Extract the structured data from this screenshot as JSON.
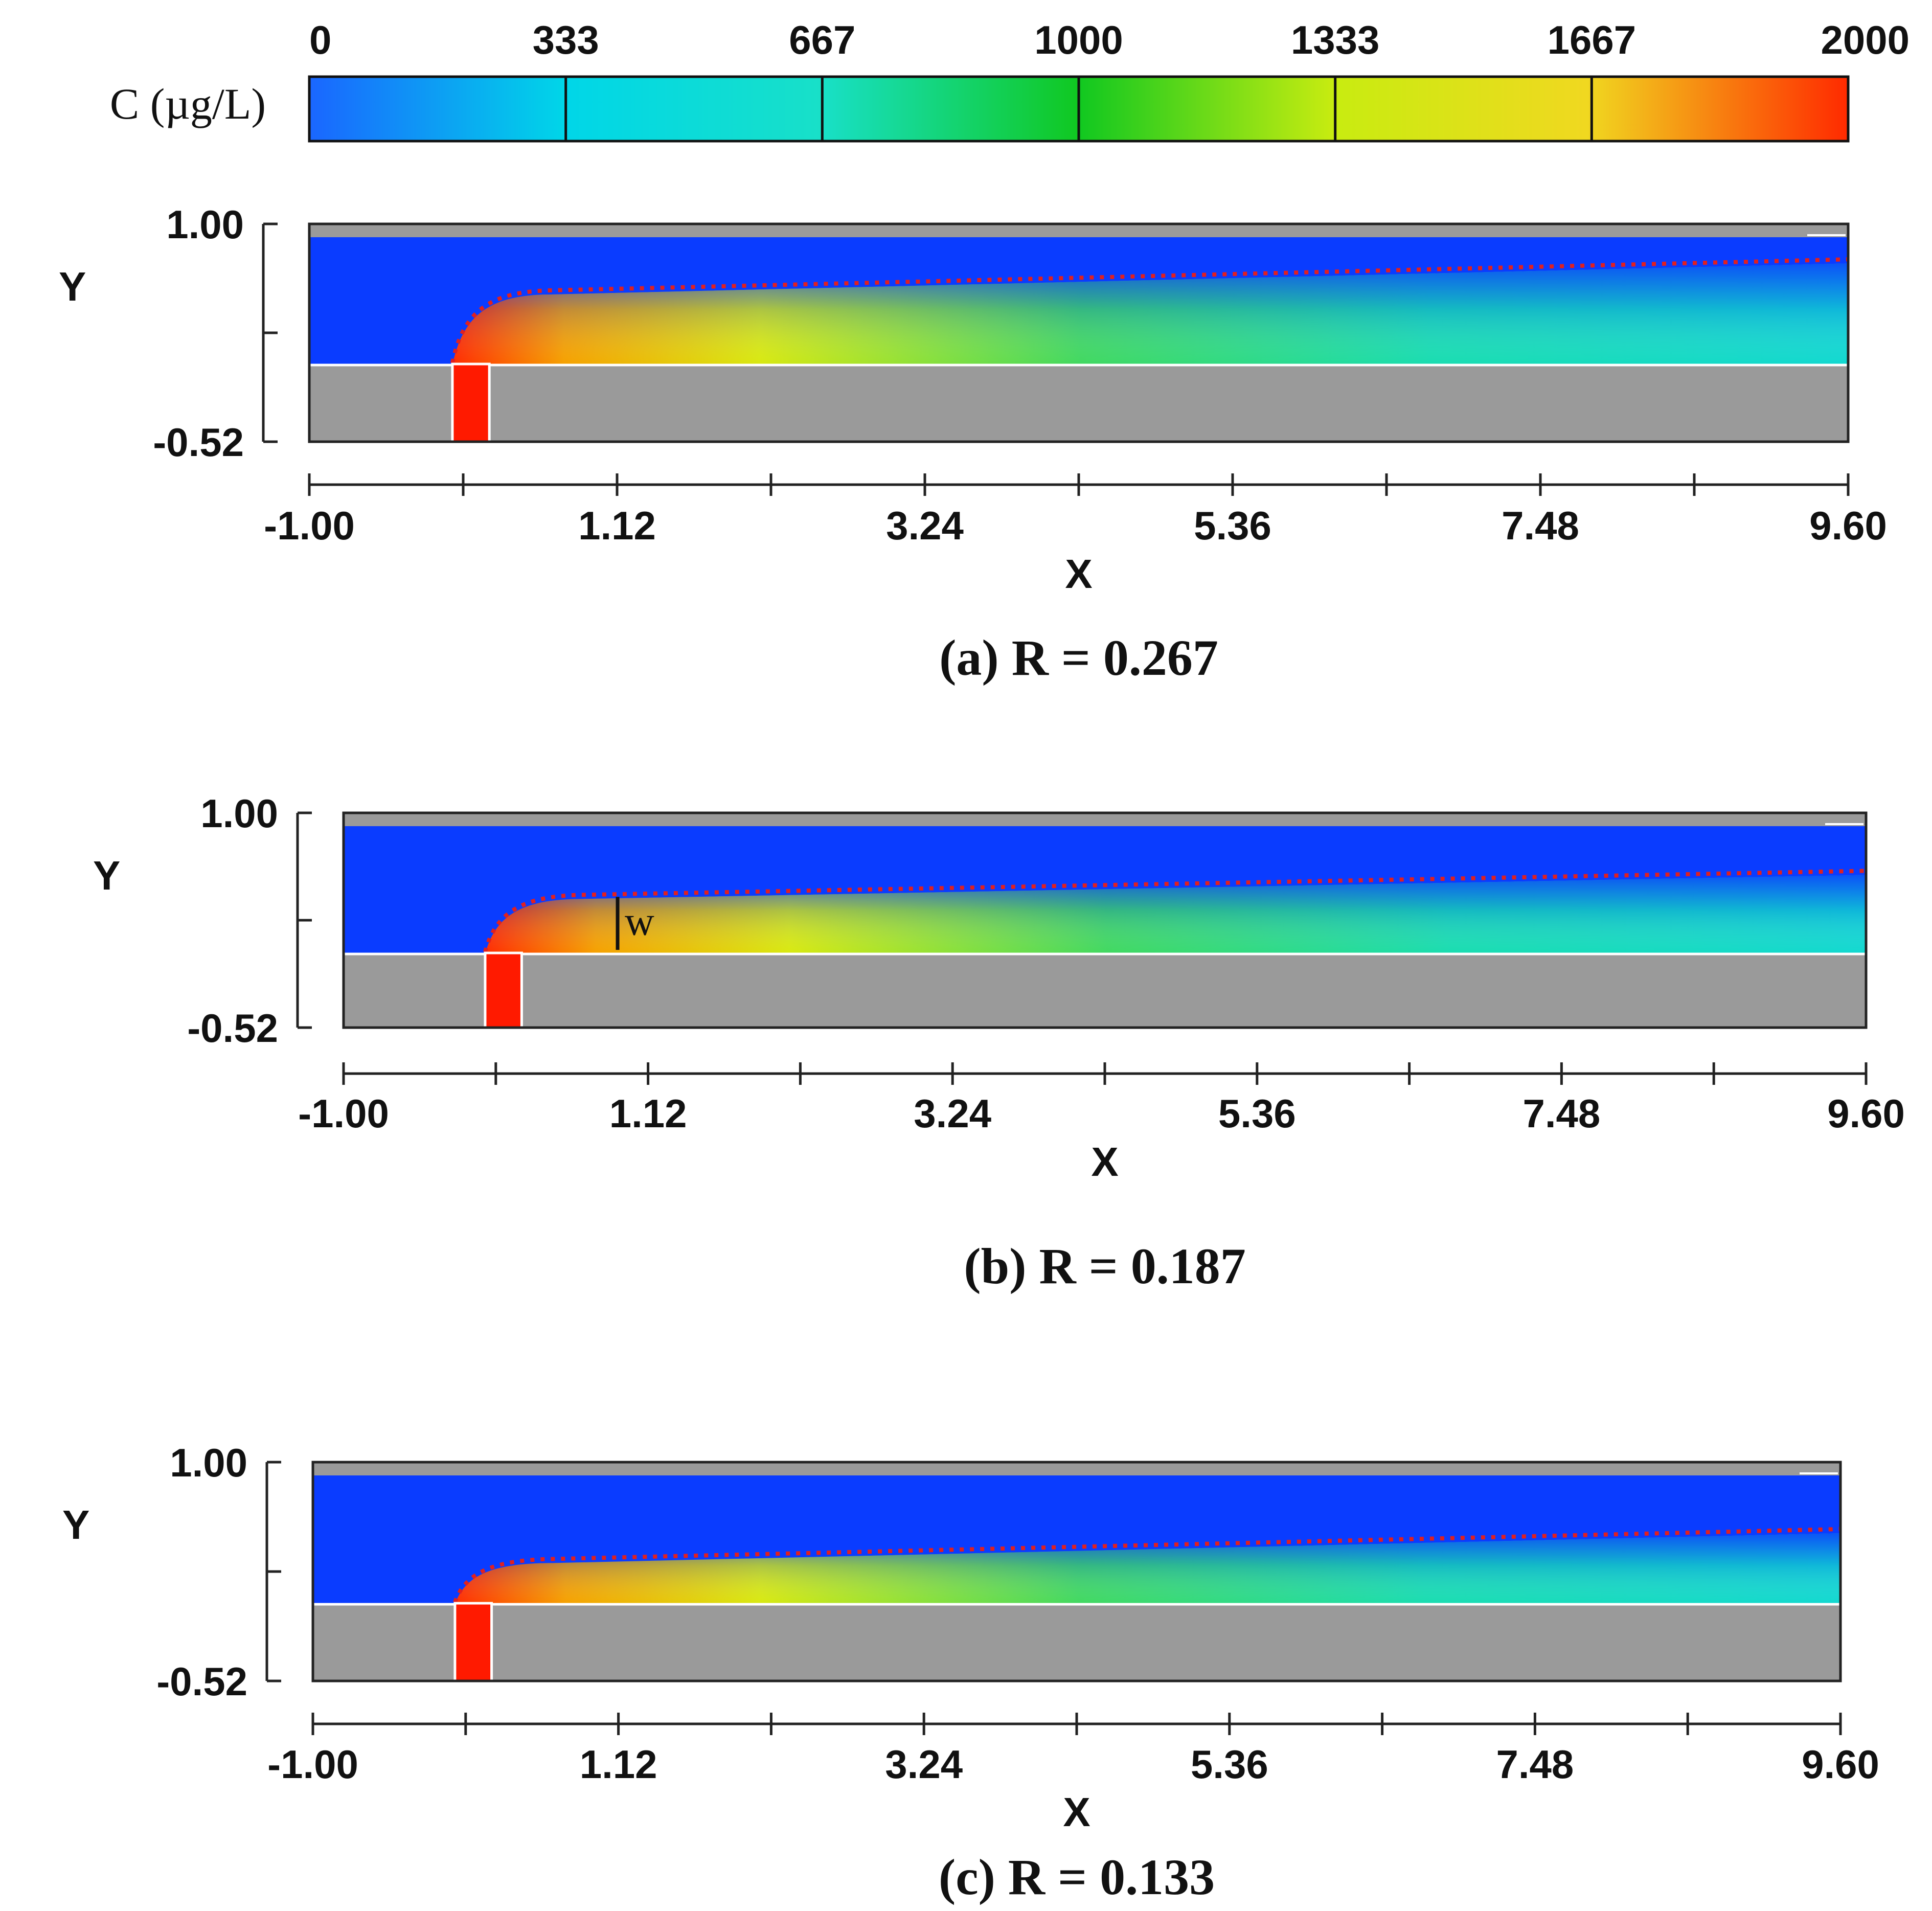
{
  "colorbar": {
    "label": "C (µg/L)",
    "ticks": [
      "0",
      "333",
      "667",
      "1000",
      "1333",
      "1667",
      "2000"
    ],
    "range": [
      0,
      2000
    ],
    "colors": [
      "#1a66ff",
      "#00d6e8",
      "#18e0c8",
      "#10c820",
      "#c8ec10",
      "#f0d820",
      "#ff2a00"
    ]
  },
  "chart_data": [
    {
      "type": "heatmap",
      "title": "(a) R = 0.267",
      "xlabel": "X",
      "ylabel": "Y",
      "xlim": [
        -1.0,
        9.6
      ],
      "ylim": [
        -0.52,
        1.0
      ],
      "x_tick_labels": [
        "-1.00",
        "1.12",
        "3.24",
        "5.36",
        "7.48",
        "9.60"
      ],
      "y_tick_labels": [
        "1.00",
        "-0.52"
      ],
      "R": 0.267
    },
    {
      "type": "heatmap",
      "title": "(b) R = 0.187",
      "xlabel": "X",
      "ylabel": "Y",
      "xlim": [
        -1.0,
        9.6
      ],
      "ylim": [
        -0.52,
        1.0
      ],
      "x_tick_labels": [
        "-1.00",
        "1.12",
        "3.24",
        "5.36",
        "7.48",
        "9.60"
      ],
      "y_tick_labels": [
        "1.00",
        "-0.52"
      ],
      "annotation": "w",
      "R": 0.187
    },
    {
      "type": "heatmap",
      "title": "(c) R = 0.133",
      "xlabel": "X",
      "ylabel": "Y",
      "xlim": [
        -1.0,
        9.6
      ],
      "ylim": [
        -0.52,
        1.0
      ],
      "x_tick_labels": [
        "-1.00",
        "1.12",
        "3.24",
        "5.36",
        "7.48",
        "9.60"
      ],
      "y_tick_labels": [
        "1.00",
        "-0.52"
      ],
      "R": 0.133
    }
  ]
}
